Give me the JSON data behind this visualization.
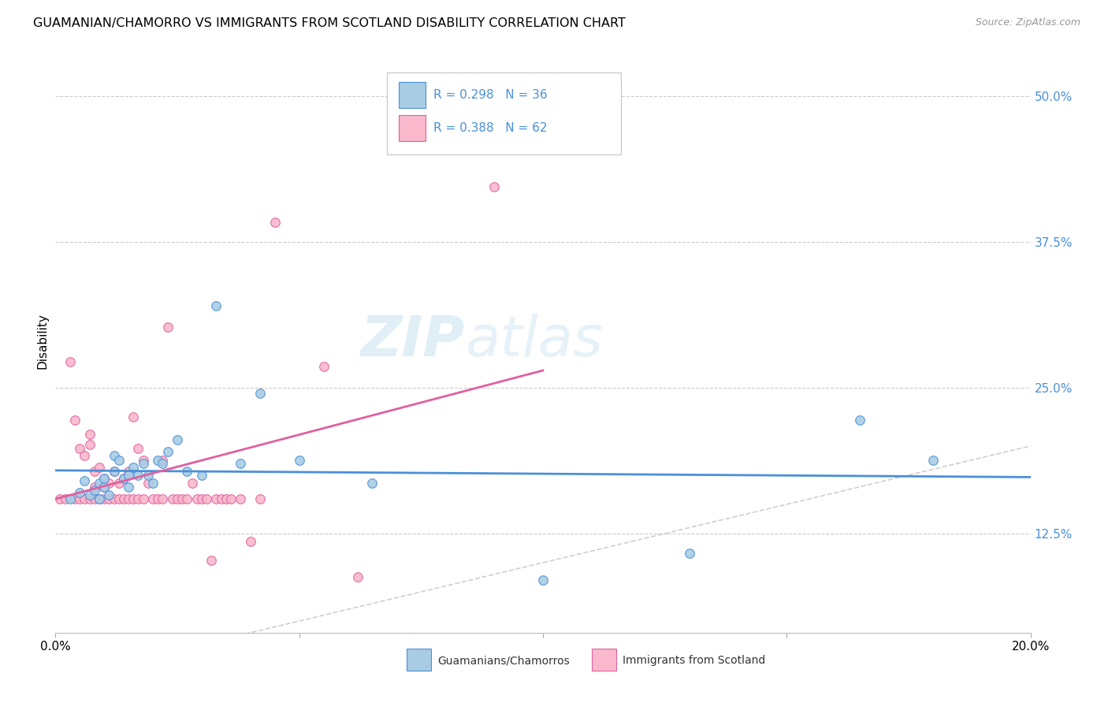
{
  "title": "GUAMANIAN/CHAMORRO VS IMMIGRANTS FROM SCOTLAND DISABILITY CORRELATION CHART",
  "source": "Source: ZipAtlas.com",
  "ylabel": "Disability",
  "yticks": [
    "12.5%",
    "25.0%",
    "37.5%",
    "50.0%"
  ],
  "ytick_vals": [
    0.125,
    0.25,
    0.375,
    0.5
  ],
  "xlim": [
    0.0,
    0.2
  ],
  "ylim": [
    0.04,
    0.54
  ],
  "legend_blue_R": "0.298",
  "legend_blue_N": "36",
  "legend_pink_R": "0.388",
  "legend_pink_N": "62",
  "legend_label_blue": "Guamanians/Chamorros",
  "legend_label_pink": "Immigrants from Scotland",
  "color_blue": "#a8cce4",
  "color_pink": "#f9b8cb",
  "color_blue_line": "#4a90d9",
  "color_pink_line": "#e060a0",
  "color_diag": "#bbbbbb",
  "watermark_zip": "ZIP",
  "watermark_atlas": "atlas",
  "blue_scatter_x": [
    0.003,
    0.005,
    0.006,
    0.007,
    0.008,
    0.009,
    0.009,
    0.01,
    0.01,
    0.011,
    0.012,
    0.012,
    0.013,
    0.014,
    0.015,
    0.015,
    0.016,
    0.017,
    0.018,
    0.019,
    0.02,
    0.021,
    0.022,
    0.023,
    0.025,
    0.027,
    0.03,
    0.033,
    0.038,
    0.042,
    0.05,
    0.065,
    0.1,
    0.13,
    0.165,
    0.18
  ],
  "blue_scatter_y": [
    0.155,
    0.16,
    0.17,
    0.158,
    0.162,
    0.155,
    0.168,
    0.165,
    0.172,
    0.158,
    0.178,
    0.192,
    0.188,
    0.172,
    0.175,
    0.165,
    0.182,
    0.175,
    0.185,
    0.175,
    0.168,
    0.188,
    0.185,
    0.195,
    0.205,
    0.178,
    0.175,
    0.32,
    0.185,
    0.245,
    0.188,
    0.168,
    0.085,
    0.108,
    0.222,
    0.188
  ],
  "pink_scatter_x": [
    0.001,
    0.002,
    0.003,
    0.004,
    0.004,
    0.005,
    0.005,
    0.006,
    0.006,
    0.007,
    0.007,
    0.007,
    0.008,
    0.008,
    0.008,
    0.009,
    0.009,
    0.01,
    0.01,
    0.01,
    0.011,
    0.011,
    0.012,
    0.012,
    0.013,
    0.013,
    0.014,
    0.014,
    0.015,
    0.015,
    0.016,
    0.016,
    0.017,
    0.017,
    0.018,
    0.018,
    0.019,
    0.02,
    0.021,
    0.022,
    0.022,
    0.023,
    0.024,
    0.025,
    0.026,
    0.027,
    0.028,
    0.029,
    0.03,
    0.031,
    0.032,
    0.033,
    0.034,
    0.035,
    0.036,
    0.038,
    0.04,
    0.042,
    0.045,
    0.055,
    0.062,
    0.09
  ],
  "pink_scatter_y": [
    0.155,
    0.155,
    0.272,
    0.155,
    0.222,
    0.155,
    0.198,
    0.155,
    0.192,
    0.155,
    0.201,
    0.21,
    0.155,
    0.165,
    0.178,
    0.155,
    0.182,
    0.155,
    0.165,
    0.172,
    0.155,
    0.168,
    0.155,
    0.178,
    0.155,
    0.168,
    0.155,
    0.172,
    0.155,
    0.178,
    0.155,
    0.225,
    0.155,
    0.198,
    0.155,
    0.188,
    0.168,
    0.155,
    0.155,
    0.155,
    0.188,
    0.302,
    0.155,
    0.155,
    0.155,
    0.155,
    0.168,
    0.155,
    0.155,
    0.155,
    0.102,
    0.155,
    0.155,
    0.155,
    0.155,
    0.155,
    0.118,
    0.155,
    0.392,
    0.268,
    0.088,
    0.422
  ]
}
